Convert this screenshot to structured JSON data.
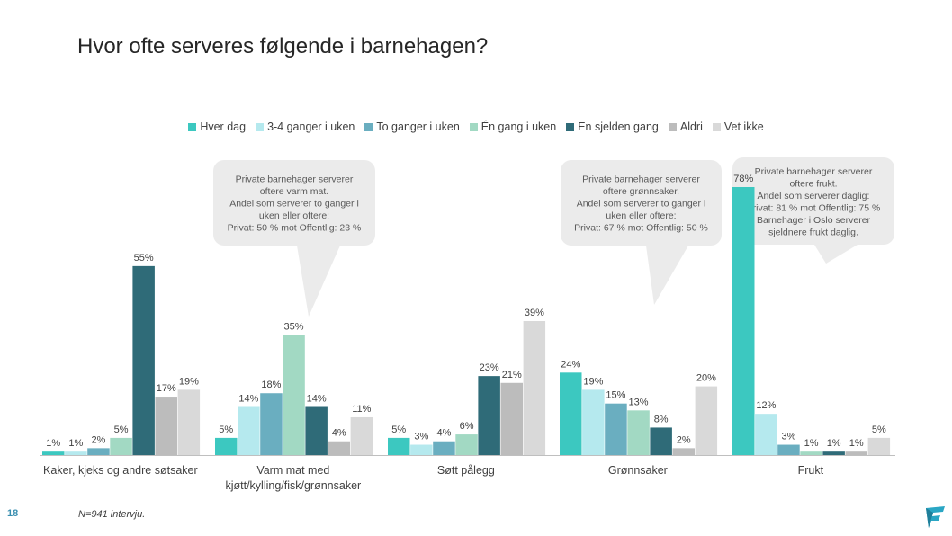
{
  "title": "Hvor ofte serveres følgende i barnehagen?",
  "page_number": "18",
  "footnote": "N=941 intervju.",
  "callouts": [
    {
      "lines": [
        "Private barnehager serverer",
        "oftere varm mat.",
        "Andel som serverer to ganger i",
        "uken eller oftere:",
        "Privat: 50 % mot Offentlig: 23 %"
      ]
    },
    {
      "lines": [
        "Private barnehager serverer",
        "oftere grønnsaker.",
        "Andel som serverer to ganger i",
        "uken eller oftere:",
        "Privat: 67 % mot Offentlig: 50 %"
      ]
    },
    {
      "lines": [
        "Private barnehager serverer",
        "oftere frukt.",
        "Andel som serverer daglig:",
        "Privat: 81 % mot Offentlig: 75 %",
        "Barnehager i Oslo serverer",
        "sjeldnere frukt daglig."
      ]
    }
  ],
  "colors": {
    "bubble": "#ebebeb",
    "axis": "#bfbfbf"
  },
  "chart_data": {
    "type": "bar",
    "title": "Hvor ofte serveres følgende i barnehagen?",
    "categories": [
      [
        "Kaker, kjeks og andre søtsaker"
      ],
      [
        "Varm mat med",
        "kjøtt/kylling/fisk/grønnsaker"
      ],
      [
        "Søtt pålegg"
      ],
      [
        "Grønnsaker"
      ],
      [
        "Frukt"
      ]
    ],
    "series": [
      {
        "name": "Hver dag",
        "color": "#3cc8c0",
        "values": [
          1,
          5,
          5,
          24,
          78
        ]
      },
      {
        "name": "3-4 ganger i uken",
        "color": "#b5e9ee",
        "values": [
          1,
          14,
          3,
          19,
          12
        ]
      },
      {
        "name": "To ganger i uken",
        "color": "#6aaec0",
        "values": [
          2,
          18,
          4,
          15,
          3
        ]
      },
      {
        "name": "Én gang i uken",
        "color": "#a2d9c3",
        "values": [
          5,
          35,
          6,
          13,
          1
        ]
      },
      {
        "name": "En sjelden gang",
        "color": "#2f6b78",
        "values": [
          55,
          14,
          23,
          8,
          1
        ]
      },
      {
        "name": "Aldri",
        "color": "#bcbcbc",
        "values": [
          17,
          4,
          21,
          2,
          1
        ]
      },
      {
        "name": "Vet ikke",
        "color": "#d9d9d9",
        "values": [
          19,
          11,
          39,
          20,
          5
        ]
      }
    ],
    "value_suffix": "%",
    "ylim": [
      0,
      78
    ],
    "legend_position": "top-center",
    "grid": false
  }
}
